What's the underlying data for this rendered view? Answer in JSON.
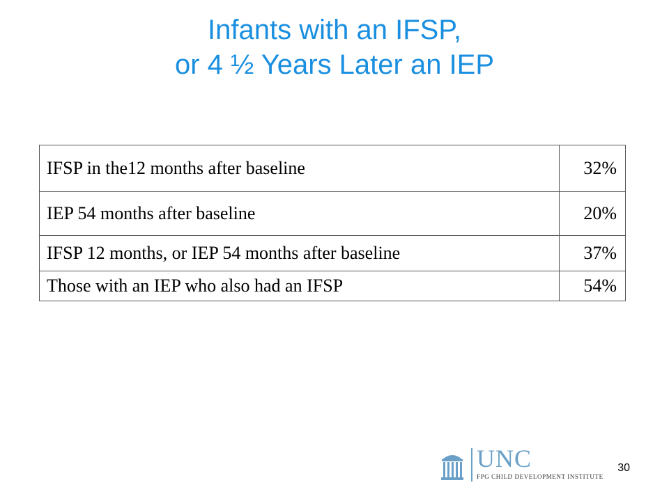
{
  "title": {
    "line1": "Infants with an IFSP,",
    "line2": "or 4 ½ Years Later an IEP"
  },
  "table": {
    "rows": [
      {
        "label": "IFSP  in the12 months after baseline",
        "value": "32%"
      },
      {
        "label": "IEP 54 months after baseline",
        "value": "20%"
      },
      {
        "label": "IFSP 12 months, or IEP 54 months after baseline",
        "value": "37%"
      },
      {
        "label": "Those with an IEP who also had an IFSP",
        "value": "54%"
      }
    ]
  },
  "logo": {
    "name": "UNC",
    "subtitle": "FPG CHILD DEVELOPMENT INSTITUTE"
  },
  "page_number": "30",
  "colors": {
    "title": "#1a8fe0",
    "logo": "#6aa0c8"
  }
}
